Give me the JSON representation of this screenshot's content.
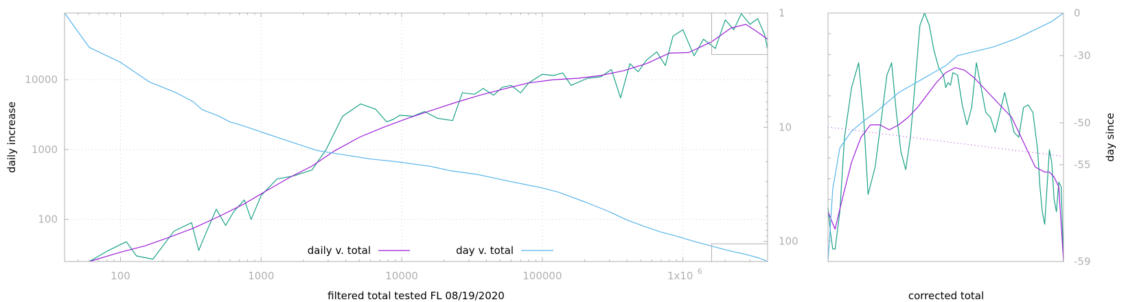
{
  "chart_data": [
    {
      "type": "line",
      "xlabel": "filtered total tested FL 08/19/2020",
      "ylabel": "daily increase",
      "y2label": "",
      "xscale": "log",
      "yscale": "log",
      "y2scale": "log-reversed",
      "xlim": [
        40,
        4000000
      ],
      "ylim": [
        25,
        90000
      ],
      "y2lim": [
        1,
        150
      ],
      "xticks": [
        100,
        1000,
        10000,
        100000,
        1000000
      ],
      "xtick_labels": [
        "100",
        "1000",
        "10000",
        "100000",
        "1x10",
        "6"
      ],
      "yticks": [
        100,
        1000,
        10000
      ],
      "ytick_labels": [
        "100",
        "1000",
        "10000"
      ],
      "y2ticks": [
        1,
        10,
        100
      ],
      "y2tick_labels": [
        "1",
        "10",
        "100"
      ],
      "grid": true,
      "legend_position": "bottom-center",
      "legend": [
        "daily v. total",
        "day v. total"
      ],
      "colors": {
        "raw": "#16a085",
        "smooth": "#9b1bd6",
        "day": "#56b4e9",
        "grid": "#cccccc",
        "frame": "#b0b0b0"
      },
      "series": [
        {
          "name": "",
          "axis": "y",
          "color": "#16a085",
          "x": [
            60,
            80,
            110,
            130,
            170,
            240,
            320,
            360,
            400,
            480,
            560,
            640,
            760,
            850,
            1000,
            1300,
            1700,
            2300,
            2900,
            3800,
            5100,
            6500,
            7800,
            8700,
            9700,
            12000,
            14500,
            18000,
            23000,
            27000,
            33000,
            38000,
            45000,
            52000,
            60000,
            70000,
            80000,
            100000,
            120000,
            140000,
            160000,
            180000,
            210000,
            260000,
            310000,
            360000,
            420000,
            480000,
            550000,
            650000,
            750000,
            850000,
            1000000,
            1200000,
            1400000,
            1700000,
            2000000,
            2300000,
            2600000,
            3000000,
            3400000,
            3800000,
            4000000
          ],
          "y": [
            25,
            35,
            48,
            30,
            27,
            68,
            90,
            36,
            60,
            140,
            82,
            130,
            190,
            100,
            220,
            380,
            420,
            510,
            1000,
            3000,
            4500,
            3800,
            2500,
            2700,
            3100,
            3000,
            3500,
            2800,
            2600,
            6500,
            6200,
            7500,
            6000,
            7800,
            8300,
            6500,
            9000,
            12000,
            11500,
            12500,
            8300,
            9200,
            10500,
            11000,
            14000,
            5500,
            17000,
            13000,
            19000,
            25000,
            16000,
            42000,
            52000,
            22000,
            38000,
            28000,
            72000,
            52000,
            88000,
            62000,
            75000,
            45000,
            28000
          ]
        },
        {
          "name": "daily v. total",
          "axis": "y",
          "color": "#9b1bd6",
          "x": [
            60,
            100,
            150,
            220,
            330,
            500,
            750,
            1100,
            1600,
            2300,
            3300,
            5000,
            7500,
            11000,
            16000,
            24000,
            36000,
            55000,
            80000,
            120000,
            180000,
            260000,
            380000,
            550000,
            800000,
            1100000,
            1600000,
            2200000,
            2800000,
            3400000,
            4000000
          ],
          "y": [
            25,
            34,
            42,
            55,
            75,
            110,
            165,
            260,
            400,
            580,
            950,
            1500,
            2100,
            2800,
            3600,
            4700,
            6000,
            7500,
            9000,
            10000,
            10500,
            11500,
            13500,
            17000,
            24000,
            24500,
            35000,
            55000,
            62000,
            48000,
            38000
          ]
        },
        {
          "name": "day v. total",
          "axis": "y2",
          "color": "#56b4e9",
          "x": [
            40,
            60,
            100,
            160,
            250,
            330,
            380,
            500,
            600,
            700,
            800,
            1000,
            1500,
            2500,
            6000,
            9000,
            16000,
            22000,
            35000,
            60000,
            100000,
            130000,
            200000,
            300000,
            400000,
            550000,
            700000,
            900000,
            1200000,
            1600000,
            2100000,
            2800000,
            3500000,
            4000000
          ],
          "y": [
            1,
            2,
            2.7,
            4,
            5,
            6,
            7,
            8,
            9,
            9.5,
            10,
            11,
            13,
            16,
            19,
            20,
            22,
            24,
            26,
            30,
            34,
            37,
            45,
            55,
            65,
            75,
            83,
            90,
            100,
            110,
            120,
            130,
            140,
            150
          ]
        }
      ]
    },
    {
      "type": "line",
      "xlabel": "corrected total",
      "ylabel": "day since",
      "xlim": [
        0,
        1
      ],
      "ylim": [
        -59,
        0
      ],
      "yticks": [
        0,
        -30,
        -50,
        -55,
        -59
      ],
      "ytick_labels": [
        "0",
        "-30",
        "-50",
        "-55",
        "-59"
      ],
      "series": [
        {
          "name": "",
          "color": "#16a085",
          "x": [
            0,
            0.01,
            0.02,
            0.03,
            0.05,
            0.07,
            0.1,
            0.13,
            0.15,
            0.17,
            0.2,
            0.23,
            0.25,
            0.27,
            0.29,
            0.31,
            0.33,
            0.35,
            0.37,
            0.39,
            0.41,
            0.43,
            0.45,
            0.47,
            0.49,
            0.5,
            0.51,
            0.52,
            0.53,
            0.55,
            0.57,
            0.59,
            0.61,
            0.63,
            0.65,
            0.67,
            0.69,
            0.71,
            0.73,
            0.75,
            0.77,
            0.79,
            0.81,
            0.83,
            0.85,
            0.87,
            0.89,
            0.9,
            0.91,
            0.92,
            0.93,
            0.94,
            0.95,
            0.96,
            0.97,
            0.98,
            0.99,
            1.0
          ],
          "y": [
            0.22,
            0.12,
            0.05,
            0.05,
            0.2,
            0.5,
            0.7,
            0.8,
            0.6,
            0.27,
            0.38,
            0.6,
            0.75,
            0.8,
            0.6,
            0.44,
            0.37,
            0.5,
            0.72,
            0.95,
            1.0,
            0.95,
            0.85,
            0.78,
            0.75,
            0.7,
            0.72,
            0.71,
            0.76,
            0.75,
            0.63,
            0.55,
            0.62,
            0.8,
            0.7,
            0.6,
            0.58,
            0.52,
            0.6,
            0.68,
            0.6,
            0.52,
            0.5,
            0.62,
            0.63,
            0.6,
            0.45,
            0.3,
            0.2,
            0.15,
            0.3,
            0.45,
            0.4,
            0.25,
            0.2,
            0.32,
            0.3,
            0.0
          ]
        },
        {
          "name": "",
          "color": "#9b1bd6",
          "x": [
            0,
            0.03,
            0.06,
            0.1,
            0.14,
            0.18,
            0.22,
            0.26,
            0.3,
            0.34,
            0.38,
            0.42,
            0.46,
            0.5,
            0.54,
            0.58,
            0.62,
            0.66,
            0.7,
            0.74,
            0.78,
            0.82,
            0.86,
            0.88,
            0.9,
            0.92,
            0.94,
            0.96,
            0.98,
            1.0
          ],
          "y": [
            0.2,
            0.13,
            0.25,
            0.4,
            0.5,
            0.55,
            0.55,
            0.53,
            0.55,
            0.58,
            0.62,
            0.67,
            0.72,
            0.76,
            0.78,
            0.77,
            0.74,
            0.7,
            0.66,
            0.62,
            0.58,
            0.5,
            0.42,
            0.38,
            0.37,
            0.36,
            0.36,
            0.34,
            0.3,
            0.0
          ]
        },
        {
          "name": "",
          "color": "#56b4e9",
          "x": [
            0,
            0.02,
            0.05,
            0.1,
            0.15,
            0.2,
            0.25,
            0.3,
            0.35,
            0.4,
            0.45,
            0.5,
            0.55,
            0.6,
            0.65,
            0.7,
            0.75,
            0.8,
            0.85,
            0.9,
            0.95,
            1.0
          ],
          "y": [
            -59,
            -56,
            -53,
            -51,
            -49.5,
            -47,
            -44,
            -41,
            -39,
            -37,
            -35,
            -33,
            -30,
            -28,
            -26,
            -24,
            -21,
            -18,
            -14,
            -10,
            -6,
            0
          ]
        },
        {
          "name": "",
          "color": "#9b1bd6",
          "style": "dotted",
          "x": [
            0,
            1
          ],
          "y": [
            -50.5,
            -54
          ]
        }
      ]
    }
  ],
  "legend": {
    "smooth_label": "daily v. total",
    "day_label": "day v. total"
  },
  "labels": {
    "x_main": "filtered total tested FL 08/19/2020",
    "y_main": "daily increase",
    "x_inset": "corrected total",
    "y_inset": "day since",
    "exp_base": "1x10",
    "exp_sup": "6"
  }
}
